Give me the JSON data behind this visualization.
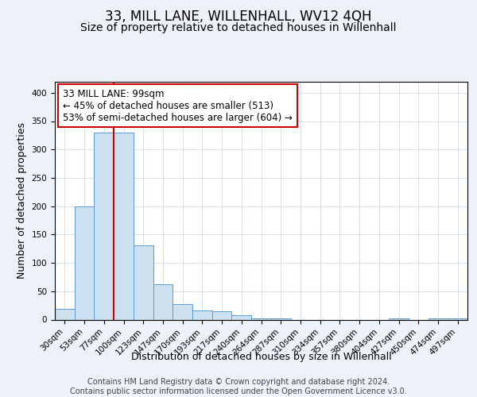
{
  "title": "33, MILL LANE, WILLENHALL, WV12 4QH",
  "subtitle": "Size of property relative to detached houses in Willenhall",
  "xlabel": "Distribution of detached houses by size in Willenhall",
  "ylabel": "Number of detached properties",
  "bar_labels": [
    "30sqm",
    "53sqm",
    "77sqm",
    "100sqm",
    "123sqm",
    "147sqm",
    "170sqm",
    "193sqm",
    "217sqm",
    "240sqm",
    "264sqm",
    "287sqm",
    "310sqm",
    "334sqm",
    "357sqm",
    "380sqm",
    "404sqm",
    "427sqm",
    "450sqm",
    "474sqm",
    "497sqm"
  ],
  "bar_values": [
    19,
    200,
    330,
    330,
    131,
    62,
    27,
    16,
    15,
    8,
    2,
    2,
    0,
    0,
    0,
    0,
    0,
    2,
    0,
    2,
    2
  ],
  "bar_color": "#cce0f0",
  "bar_edge_color": "#5b9bd5",
  "property_line_index": 3,
  "property_line_color": "#cc0000",
  "ylim": [
    0,
    420
  ],
  "annotation_line1": "33 MILL LANE: 99sqm",
  "annotation_line2": "← 45% of detached houses are smaller (513)",
  "annotation_line3": "53% of semi-detached houses are larger (604) →",
  "annotation_box_color": "white",
  "annotation_box_edge": "#cc0000",
  "footer_line1": "Contains HM Land Registry data © Crown copyright and database right 2024.",
  "footer_line2": "Contains public sector information licensed under the Open Government Licence v3.0.",
  "background_color": "#edf2f9",
  "plot_bg_color": "white",
  "title_fontsize": 12,
  "subtitle_fontsize": 10,
  "axis_label_fontsize": 9,
  "tick_fontsize": 7.5,
  "annotation_fontsize": 8.5,
  "footer_fontsize": 7
}
